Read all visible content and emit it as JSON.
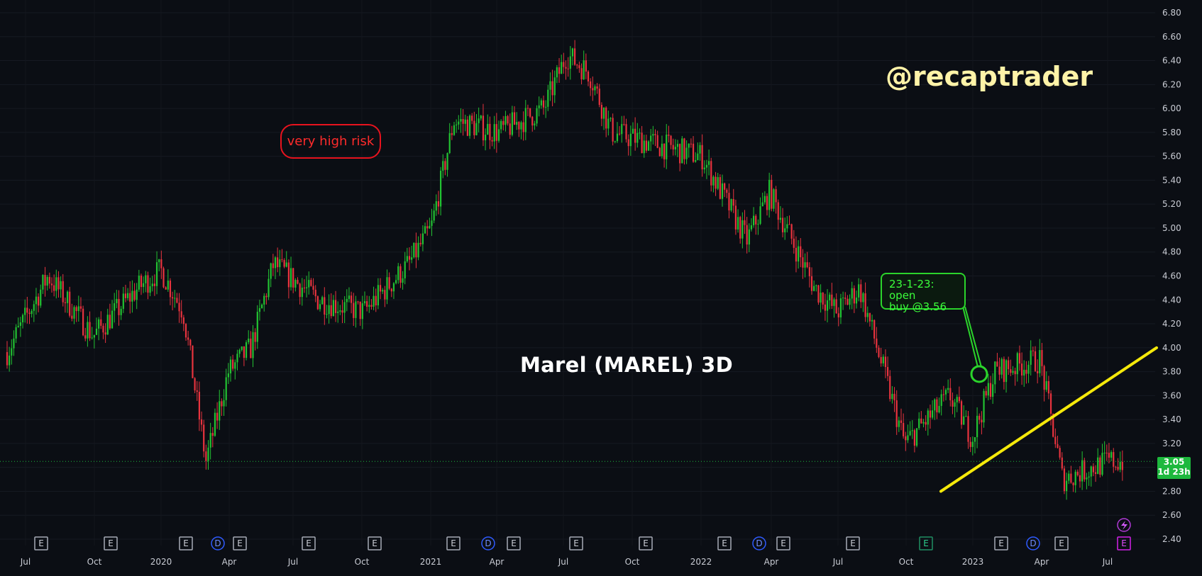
{
  "title": "Marel (MAREL) 3D",
  "watermark": "@recaptrader",
  "annotations": {
    "risk_label": "very high risk",
    "trade_note_line1": "23-1-23: open",
    "trade_note_line2": "buy @3.56"
  },
  "price_tag": {
    "price": "3.05",
    "countdown": "1d 23h"
  },
  "colors": {
    "background": "#0b0e14",
    "up": "#22c232",
    "down": "#e8333e",
    "trendline": "#f5e90a",
    "risk": "#e8131e",
    "trade_note": "#2bd42b"
  },
  "chart_data": {
    "type": "candlestick",
    "title": "Marel (MAREL) 3D",
    "ylim": [
      2.4,
      6.8
    ],
    "y_ticks": [
      "6.80",
      "6.60",
      "6.40",
      "6.20",
      "6.00",
      "5.80",
      "5.60",
      "5.40",
      "5.20",
      "5.00",
      "4.80",
      "4.60",
      "4.40",
      "4.20",
      "4.00",
      "3.80",
      "3.60",
      "3.40",
      "3.20",
      "3.00",
      "2.80",
      "2.60",
      "2.40"
    ],
    "x_ticks": [
      "Jul",
      "Oct",
      "2020",
      "Apr",
      "Jul",
      "Oct",
      "2021",
      "Apr",
      "Jul",
      "Oct",
      "2022",
      "Apr",
      "Jul",
      "Oct",
      "2023",
      "Apr",
      "Jul"
    ],
    "grid": true,
    "last_price": 3.05,
    "price_path": [
      {
        "date": "2019-06",
        "price": 3.9
      },
      {
        "date": "2019-08",
        "price": 4.6
      },
      {
        "date": "2019-10",
        "price": 4.1
      },
      {
        "date": "2019-12",
        "price": 4.5
      },
      {
        "date": "2020-01",
        "price": 4.65
      },
      {
        "date": "2020-02",
        "price": 4.3
      },
      {
        "date": "2020-03",
        "price": 3.05
      },
      {
        "date": "2020-04",
        "price": 3.8
      },
      {
        "date": "2020-05",
        "price": 4.0
      },
      {
        "date": "2020-06",
        "price": 4.7
      },
      {
        "date": "2020-08",
        "price": 4.4
      },
      {
        "date": "2020-10",
        "price": 4.3
      },
      {
        "date": "2020-12",
        "price": 4.7
      },
      {
        "date": "2021-01",
        "price": 5.0
      },
      {
        "date": "2021-02",
        "price": 5.9
      },
      {
        "date": "2021-04",
        "price": 5.8
      },
      {
        "date": "2021-06",
        "price": 6.0
      },
      {
        "date": "2021-07",
        "price": 6.45
      },
      {
        "date": "2021-08",
        "price": 6.3
      },
      {
        "date": "2021-09",
        "price": 5.8
      },
      {
        "date": "2021-11",
        "price": 5.7
      },
      {
        "date": "2022-01",
        "price": 5.6
      },
      {
        "date": "2022-03",
        "price": 4.9
      },
      {
        "date": "2022-04",
        "price": 5.3
      },
      {
        "date": "2022-06",
        "price": 4.5
      },
      {
        "date": "2022-07",
        "price": 4.3
      },
      {
        "date": "2022-08",
        "price": 4.5
      },
      {
        "date": "2022-10",
        "price": 3.2
      },
      {
        "date": "2022-12",
        "price": 3.6
      },
      {
        "date": "2023-01",
        "price": 3.25
      },
      {
        "date": "2023-02",
        "price": 3.8
      },
      {
        "date": "2023-04",
        "price": 3.9
      },
      {
        "date": "2023-05",
        "price": 2.9
      },
      {
        "date": "2023-07",
        "price": 3.05
      }
    ],
    "trendline": [
      {
        "date": "2022-11",
        "price": 2.8
      },
      {
        "date": "2023-08",
        "price": 4.0
      }
    ],
    "marked_point": {
      "date": "2023-01-23",
      "price": 3.78
    },
    "events": [
      "E",
      "E",
      "E",
      "D",
      "E",
      "E",
      "E",
      "E",
      "D",
      "E",
      "E",
      "E",
      "E",
      "D",
      "E",
      "E",
      "E",
      "E",
      "D",
      "E",
      "E"
    ]
  }
}
